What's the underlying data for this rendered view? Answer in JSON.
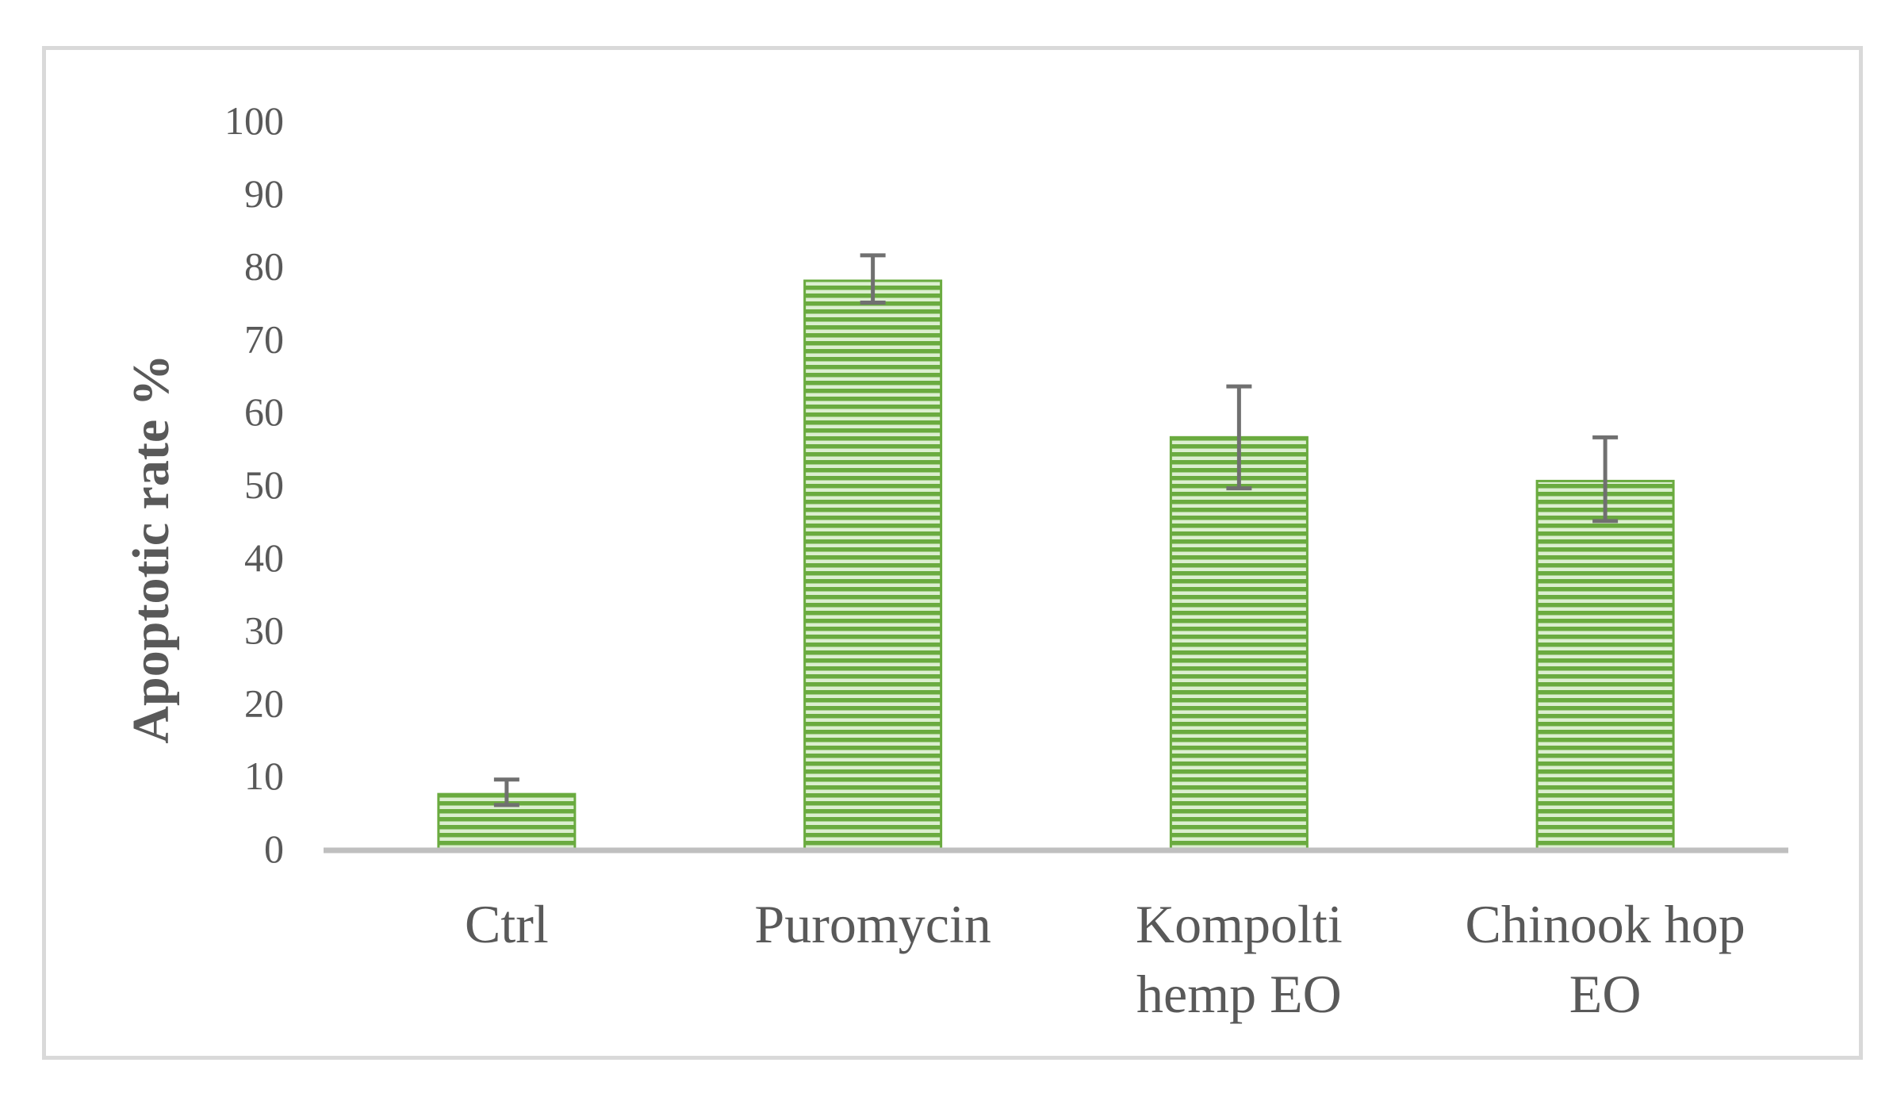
{
  "chart_data": {
    "type": "bar",
    "categories": [
      [
        "Ctrl"
      ],
      [
        "Puromycin"
      ],
      [
        "Kompolti",
        "hemp EO"
      ],
      [
        "Chinook hop",
        "EO"
      ]
    ],
    "values": [
      7.5,
      78,
      56.5,
      50.5
    ],
    "error_plus": [
      2,
      3.5,
      7,
      6
    ],
    "error_minus": [
      1.5,
      3,
      7,
      5.5
    ],
    "title": "",
    "xlabel": "",
    "ylabel": "Apoptotic rate %",
    "ylim": [
      0,
      100
    ],
    "ytick_step": 10,
    "grid": false,
    "legend": "none",
    "colors": {
      "bar_stripe_dark": "#6aab3f",
      "bar_stripe_light": "#dcefd0",
      "error_bar": "#707070",
      "axis_line": "#bfbfbf",
      "text": "#595959"
    }
  }
}
